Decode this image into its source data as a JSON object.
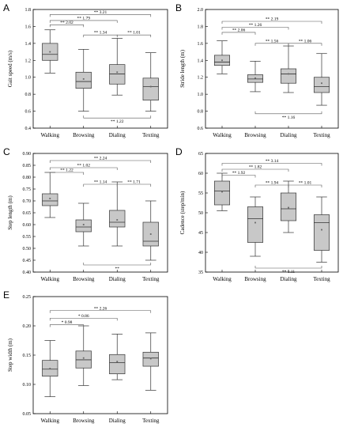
{
  "chart_data": [
    {
      "panel": "A",
      "type": "box",
      "ylabel": "Gait speed (m/s)",
      "ylim": [
        0.4,
        1.8
      ],
      "yticks": [
        "0.4",
        "0.6",
        "0.8",
        "1.0",
        "1.2",
        "1.4",
        "1.6",
        "1.8"
      ],
      "tick_values": [
        0.4,
        0.6,
        0.8,
        1.0,
        1.2,
        1.4,
        1.6,
        1.8
      ],
      "categories": [
        "Walking",
        "Browsing",
        "Dialing",
        "Texting"
      ],
      "boxes": [
        {
          "min": 1.05,
          "q1": 1.2,
          "median": 1.27,
          "q3": 1.4,
          "max": 1.56,
          "mean": 1.3
        },
        {
          "min": 0.6,
          "q1": 0.87,
          "median": 0.95,
          "q3": 1.06,
          "max": 1.33,
          "mean": 0.98
        },
        {
          "min": 0.79,
          "q1": 0.92,
          "median": 1.04,
          "q3": 1.15,
          "max": 1.46,
          "mean": 1.06
        },
        {
          "min": 0.6,
          "q1": 0.73,
          "median": 0.89,
          "q3": 0.99,
          "max": 1.29,
          "mean": 0.89
        }
      ],
      "comparisons": [
        {
          "from": 0,
          "to": 3,
          "level": 1.74,
          "label": "** 3.21",
          "side": "top"
        },
        {
          "from": 0,
          "to": 2,
          "level": 1.67,
          "label": "** 1.79",
          "side": "top"
        },
        {
          "from": 0,
          "to": 1,
          "level": 1.62,
          "label": "** 2.02",
          "side": "top"
        },
        {
          "from": 1,
          "to": 2,
          "level": 1.5,
          "label": "** 1.34",
          "side": "top"
        },
        {
          "from": 2,
          "to": 3,
          "level": 1.5,
          "label": "** 1.01",
          "side": "top"
        },
        {
          "from": 1,
          "to": 3,
          "level": 0.52,
          "label": "** 1.22",
          "side": "bottom"
        }
      ]
    },
    {
      "panel": "B",
      "type": "box",
      "ylabel": "Stride length (m)",
      "ylim": [
        0.6,
        2.0
      ],
      "yticks": [
        "0.6",
        "0.8",
        "1.0",
        "1.2",
        "1.4",
        "1.6",
        "1.8",
        "2.0"
      ],
      "tick_values": [
        0.6,
        0.8,
        1.0,
        1.2,
        1.4,
        1.6,
        1.8,
        2.0
      ],
      "categories": [
        "Walking",
        "Browsing",
        "Dialing",
        "Texting"
      ],
      "boxes": [
        {
          "min": 1.24,
          "q1": 1.34,
          "median": 1.38,
          "q3": 1.46,
          "max": 1.63,
          "mean": 1.4
        },
        {
          "min": 1.03,
          "q1": 1.14,
          "median": 1.18,
          "q3": 1.23,
          "max": 1.39,
          "mean": 1.19
        },
        {
          "min": 1.02,
          "q1": 1.13,
          "median": 1.24,
          "q3": 1.3,
          "max": 1.57,
          "mean": 1.24
        },
        {
          "min": 0.87,
          "q1": 1.02,
          "median": 1.09,
          "q3": 1.2,
          "max": 1.48,
          "mean": 1.13
        }
      ],
      "comparisons": [
        {
          "from": 0,
          "to": 3,
          "level": 1.86,
          "label": "** 2.19",
          "side": "top"
        },
        {
          "from": 0,
          "to": 2,
          "level": 1.79,
          "label": "** 1.26",
          "side": "top"
        },
        {
          "from": 0,
          "to": 1,
          "level": 1.73,
          "label": "** 2.06",
          "side": "top"
        },
        {
          "from": 1,
          "to": 2,
          "level": 1.6,
          "label": "** 1.56",
          "side": "top"
        },
        {
          "from": 2,
          "to": 3,
          "level": 1.6,
          "label": "** 1.06",
          "side": "top"
        },
        {
          "from": 1,
          "to": 3,
          "level": 0.77,
          "label": "** 1.16",
          "side": "bottom"
        }
      ]
    },
    {
      "panel": "C",
      "type": "box",
      "ylabel": "Step length (m)",
      "ylim": [
        0.4,
        0.9
      ],
      "yticks": [
        "0.40",
        "0.45",
        "0.50",
        "0.55",
        "0.60",
        "0.65",
        "0.70",
        "0.75",
        "0.80",
        "0.85",
        "0.90"
      ],
      "tick_values": [
        0.4,
        0.45,
        0.5,
        0.55,
        0.6,
        0.65,
        0.7,
        0.75,
        0.8,
        0.85,
        0.9
      ],
      "categories": [
        "Walking",
        "Browsing",
        "Dialing",
        "Texting"
      ],
      "boxes": [
        {
          "min": 0.63,
          "q1": 0.68,
          "median": 0.7,
          "q3": 0.73,
          "max": 0.82,
          "mean": 0.71
        },
        {
          "min": 0.51,
          "q1": 0.57,
          "median": 0.59,
          "q3": 0.62,
          "max": 0.69,
          "mean": 0.6
        },
        {
          "min": 0.51,
          "q1": 0.59,
          "median": 0.61,
          "q3": 0.66,
          "max": 0.78,
          "mean": 0.62
        },
        {
          "min": 0.45,
          "q1": 0.51,
          "median": 0.53,
          "q3": 0.61,
          "max": 0.7,
          "mean": 0.56
        }
      ],
      "comparisons": [
        {
          "from": 0,
          "to": 3,
          "level": 0.87,
          "label": "** 2.24",
          "side": "top"
        },
        {
          "from": 0,
          "to": 2,
          "level": 0.84,
          "label": "** 1.02",
          "side": "top"
        },
        {
          "from": 0,
          "to": 1,
          "level": 0.82,
          "label": "** 1.22",
          "side": "top"
        },
        {
          "from": 1,
          "to": 2,
          "level": 0.77,
          "label": "** 1.14",
          "side": "top"
        },
        {
          "from": 2,
          "to": 3,
          "level": 0.77,
          "label": "** 1.71",
          "side": "top"
        },
        {
          "from": 1,
          "to": 3,
          "level": 0.43,
          "label": "**",
          "side": "bottom"
        }
      ]
    },
    {
      "panel": "D",
      "type": "box",
      "ylabel": "Cadence (step/min)",
      "ylim": [
        35,
        65
      ],
      "yticks": [
        "35",
        "40",
        "45",
        "50",
        "55",
        "60",
        "65"
      ],
      "tick_values": [
        35,
        40,
        45,
        50,
        55,
        60,
        65
      ],
      "categories": [
        "Walking",
        "Browsing",
        "Dialing",
        "Texting"
      ],
      "boxes": [
        {
          "min": 50.5,
          "q1": 52,
          "median": 55.5,
          "q3": 58,
          "max": 60,
          "mean": 55.3
        },
        {
          "min": 39,
          "q1": 42.5,
          "median": 48.5,
          "q3": 51.5,
          "max": 54,
          "mean": 47.5
        },
        {
          "min": 45,
          "q1": 48,
          "median": 51,
          "q3": 55,
          "max": 58,
          "mean": 51.3
        },
        {
          "min": 37.5,
          "q1": 40.5,
          "median": 47.5,
          "q3": 49.5,
          "max": 54,
          "mean": 45.7
        }
      ],
      "comparisons": [
        {
          "from": 0,
          "to": 3,
          "level": 62.5,
          "label": "** 3.14",
          "side": "top"
        },
        {
          "from": 0,
          "to": 2,
          "level": 61,
          "label": "** 1.82",
          "side": "top"
        },
        {
          "from": 0,
          "to": 1,
          "level": 59.5,
          "label": "** 1.92",
          "side": "top"
        },
        {
          "from": 1,
          "to": 2,
          "level": 57,
          "label": "** 1.94",
          "side": "top"
        },
        {
          "from": 2,
          "to": 3,
          "level": 57,
          "label": "** 1.01",
          "side": "top"
        },
        {
          "from": 1,
          "to": 3,
          "level": 36,
          "label": "** 1.11",
          "side": "bottom"
        }
      ]
    },
    {
      "panel": "E",
      "type": "box",
      "ylabel": "Step width (m)",
      "ylim": [
        0.05,
        0.25
      ],
      "yticks": [
        "0.05",
        "0.10",
        "0.15",
        "0.20",
        "0.25"
      ],
      "tick_values": [
        0.05,
        0.1,
        0.15,
        0.2,
        0.25
      ],
      "categories": [
        "Walking",
        "Browsing",
        "Dialing",
        "Texting"
      ],
      "boxes": [
        {
          "min": 0.079,
          "q1": 0.114,
          "median": 0.126,
          "q3": 0.141,
          "max": 0.175,
          "mean": 0.127
        },
        {
          "min": 0.098,
          "q1": 0.128,
          "median": 0.142,
          "q3": 0.157,
          "max": 0.2,
          "mean": 0.145
        },
        {
          "min": 0.108,
          "q1": 0.118,
          "median": 0.137,
          "q3": 0.151,
          "max": 0.186,
          "mean": 0.139
        },
        {
          "min": 0.09,
          "q1": 0.131,
          "median": 0.145,
          "q3": 0.155,
          "max": 0.188,
          "mean": 0.144
        }
      ],
      "comparisons": [
        {
          "from": 0,
          "to": 3,
          "level": 0.226,
          "label": "** 2.26",
          "side": "top"
        },
        {
          "from": 0,
          "to": 2,
          "level": 0.213,
          "label": "* 0.86",
          "side": "top"
        },
        {
          "from": 0,
          "to": 1,
          "level": 0.202,
          "label": "* 0.98",
          "side": "top"
        }
      ]
    }
  ]
}
